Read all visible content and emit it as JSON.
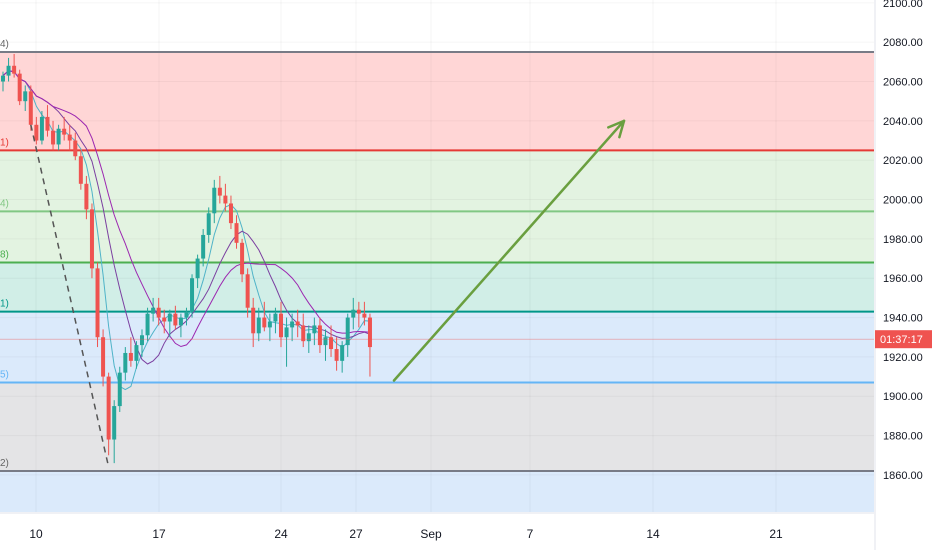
{
  "price_axis": {
    "ticks": [
      "2100.00",
      "2080.00",
      "2060.00",
      "2040.00",
      "2020.00",
      "2000.00",
      "1980.00",
      "1960.00",
      "1940.00",
      "1920.00",
      "1900.00",
      "1880.00",
      "1860.00"
    ],
    "current_price_label": "01:37:17"
  },
  "time_axis": {
    "ticks": [
      "10",
      "17",
      "24",
      "27",
      "Sep",
      "7",
      "14",
      "21"
    ]
  },
  "fib_edge_labels": [
    "4)",
    "1)",
    "4)",
    "8)",
    "1)",
    "5)",
    "2)"
  ],
  "colors": {
    "bull_candle": "#26a69a",
    "bear_candle": "#ef5350",
    "zone_red": "#ffd6d6",
    "zone_green": "#e3f3e1",
    "zone_teal": "#d1eee7",
    "zone_blue": "#dbeafb",
    "zone_grey": "#e4e4e6",
    "arrow": "#6a9f3f",
    "price_badge": "#ef5350"
  },
  "chart_data": {
    "type": "candlestick",
    "title": "",
    "ylim": [
      1840,
      2104
    ],
    "y_ticks": [
      2100,
      2080,
      2060,
      2040,
      2020,
      2000,
      1980,
      1960,
      1940,
      1920,
      1900,
      1880,
      1860
    ],
    "x_ticks": [
      "10",
      "17",
      "24",
      "27",
      "Sep",
      "7",
      "14",
      "21"
    ],
    "current_price": 1929,
    "fib_levels": [
      {
        "price": 2075,
        "color": "#787b86"
      },
      {
        "price": 2025,
        "color": "#e53935"
      },
      {
        "price": 1994,
        "color": "#81c784"
      },
      {
        "price": 1968,
        "color": "#4caf50"
      },
      {
        "price": 1943,
        "color": "#009688"
      },
      {
        "price": 1907,
        "color": "#64b5f6"
      },
      {
        "price": 1862,
        "color": "#787b86"
      }
    ],
    "zones": [
      {
        "from": 2075,
        "to": 2025,
        "color": "#ffd6d6"
      },
      {
        "from": 2025,
        "to": 1968,
        "color": "#e3f3e1"
      },
      {
        "from": 1968,
        "to": 1943,
        "color": "#d1eee7"
      },
      {
        "from": 1943,
        "to": 1907,
        "color": "#dbeafb"
      },
      {
        "from": 1907,
        "to": 1862,
        "color": "#e4e4e6"
      },
      {
        "from": 1862,
        "to": 1840,
        "color": "#dbeafb"
      }
    ],
    "candles": [
      [
        2060,
        2065,
        2055,
        2063
      ],
      [
        2063,
        2072,
        2060,
        2068
      ],
      [
        2068,
        2074,
        2062,
        2064
      ],
      [
        2064,
        2066,
        2048,
        2050
      ],
      [
        2050,
        2058,
        2045,
        2055
      ],
      [
        2055,
        2058,
        2035,
        2038
      ],
      [
        2038,
        2042,
        2028,
        2030
      ],
      [
        2030,
        2045,
        2028,
        2042
      ],
      [
        2042,
        2048,
        2032,
        2035
      ],
      [
        2035,
        2040,
        2025,
        2028
      ],
      [
        2028,
        2038,
        2025,
        2036
      ],
      [
        2036,
        2042,
        2030,
        2033
      ],
      [
        2033,
        2038,
        2025,
        2030
      ],
      [
        2030,
        2034,
        2020,
        2022
      ],
      [
        2022,
        2025,
        2005,
        2008
      ],
      [
        2008,
        2012,
        1990,
        1995
      ],
      [
        1995,
        1998,
        1960,
        1965
      ],
      [
        1965,
        1968,
        1925,
        1930
      ],
      [
        1930,
        1934,
        1905,
        1910
      ],
      [
        1910,
        1912,
        1870,
        1878
      ],
      [
        1878,
        1898,
        1866,
        1895
      ],
      [
        1895,
        1915,
        1892,
        1912
      ],
      [
        1912,
        1925,
        1908,
        1922
      ],
      [
        1922,
        1930,
        1915,
        1918
      ],
      [
        1918,
        1928,
        1914,
        1926
      ],
      [
        1926,
        1934,
        1920,
        1931
      ],
      [
        1931,
        1945,
        1928,
        1942
      ],
      [
        1942,
        1950,
        1938,
        1945
      ],
      [
        1945,
        1950,
        1936,
        1940
      ],
      [
        1940,
        1944,
        1932,
        1938
      ],
      [
        1938,
        1944,
        1930,
        1942
      ],
      [
        1942,
        1946,
        1934,
        1936
      ],
      [
        1936,
        1942,
        1930,
        1940
      ],
      [
        1940,
        1945,
        1936,
        1943
      ],
      [
        1943,
        1962,
        1940,
        1960
      ],
      [
        1960,
        1972,
        1955,
        1970
      ],
      [
        1970,
        1985,
        1966,
        1982
      ],
      [
        1982,
        1996,
        1978,
        1993
      ],
      [
        1993,
        2010,
        1988,
        2006
      ],
      [
        2006,
        2012,
        1998,
        2002
      ],
      [
        2002,
        2008,
        1994,
        1998
      ],
      [
        1998,
        2002,
        1985,
        1988
      ],
      [
        1988,
        1992,
        1975,
        1978
      ],
      [
        1978,
        1980,
        1958,
        1962
      ],
      [
        1962,
        1965,
        1940,
        1945
      ],
      [
        1945,
        1950,
        1925,
        1932
      ],
      [
        1932,
        1945,
        1928,
        1940
      ],
      [
        1940,
        1948,
        1933,
        1935
      ],
      [
        1935,
        1942,
        1928,
        1938
      ],
      [
        1938,
        1945,
        1932,
        1942
      ],
      [
        1942,
        1948,
        1925,
        1930
      ],
      [
        1930,
        1940,
        1915,
        1935
      ],
      [
        1935,
        1942,
        1928,
        1938
      ],
      [
        1938,
        1944,
        1930,
        1936
      ],
      [
        1936,
        1942,
        1925,
        1928
      ],
      [
        1928,
        1936,
        1922,
        1932
      ],
      [
        1932,
        1940,
        1926,
        1936
      ],
      [
        1936,
        1940,
        1922,
        1926
      ],
      [
        1926,
        1934,
        1918,
        1930
      ],
      [
        1930,
        1936,
        1920,
        1924
      ],
      [
        1924,
        1930,
        1913,
        1918
      ],
      [
        1918,
        1928,
        1912,
        1926
      ],
      [
        1926,
        1942,
        1920,
        1940
      ],
      [
        1940,
        1950,
        1934,
        1944
      ],
      [
        1944,
        1948,
        1935,
        1942
      ],
      [
        1942,
        1948,
        1936,
        1940
      ],
      [
        1940,
        1942,
        1910,
        1925
      ]
    ],
    "trend_arrow": {
      "from_x_tick": "27",
      "to_x_tick": "14",
      "from_price": 1908,
      "to_price": 2040
    },
    "grid": true,
    "legend": "none"
  }
}
